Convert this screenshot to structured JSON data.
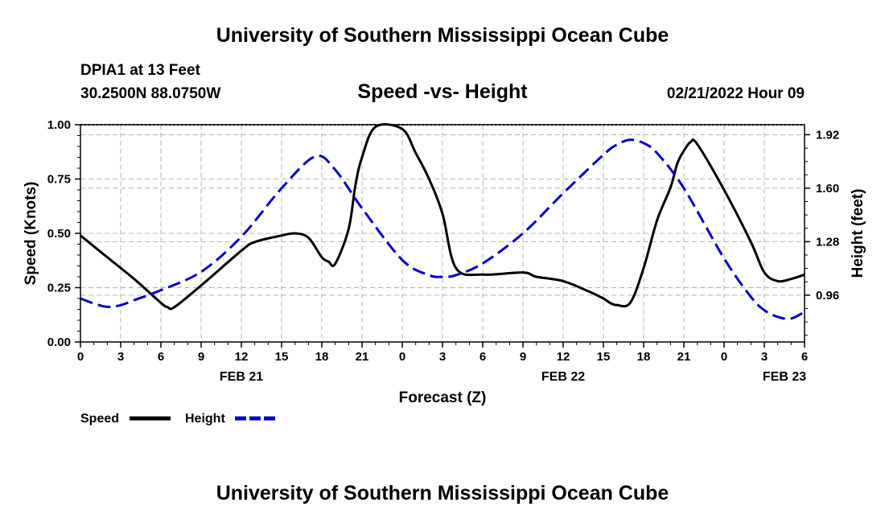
{
  "header": {
    "title": "University of Southern Mississippi Ocean Cube",
    "station": "DPIA1 at 13 Feet",
    "coords": "30.2500N  88.0750W",
    "subtitle": "Speed -vs- Height",
    "datetime": "02/21/2022 Hour 09"
  },
  "footer": {
    "title": "University of Southern Mississippi Ocean Cube"
  },
  "chart_data": {
    "type": "line",
    "title": "Speed -vs- Height",
    "xlabel": "Forecast (Z)",
    "ylabel": "Speed (Knots)",
    "y2label": "Height (feet)",
    "xlim": [
      0,
      54
    ],
    "ylim": [
      0,
      1.0
    ],
    "y2lim": [
      0.68,
      1.98
    ],
    "grid": true,
    "x_ticks": [
      {
        "hour": 0,
        "label": "0"
      },
      {
        "hour": 3,
        "label": "3"
      },
      {
        "hour": 6,
        "label": "6"
      },
      {
        "hour": 9,
        "label": "9"
      },
      {
        "hour": 12,
        "label": "12"
      },
      {
        "hour": 15,
        "label": "15"
      },
      {
        "hour": 18,
        "label": "18"
      },
      {
        "hour": 21,
        "label": "21"
      },
      {
        "hour": 24,
        "label": "0"
      },
      {
        "hour": 27,
        "label": "3"
      },
      {
        "hour": 30,
        "label": "6"
      },
      {
        "hour": 33,
        "label": "9"
      },
      {
        "hour": 36,
        "label": "12"
      },
      {
        "hour": 39,
        "label": "15"
      },
      {
        "hour": 42,
        "label": "18"
      },
      {
        "hour": 45,
        "label": "21"
      },
      {
        "hour": 48,
        "label": "0"
      },
      {
        "hour": 51,
        "label": "3"
      },
      {
        "hour": 54,
        "label": "6"
      }
    ],
    "date_labels": [
      {
        "hour": 12,
        "label": "FEB 21"
      },
      {
        "hour": 36,
        "label": "FEB 22"
      },
      {
        "hour": 52.5,
        "label": "FEB 23"
      }
    ],
    "y_ticks": [
      "0.00",
      "0.25",
      "0.50",
      "0.75",
      "1.00"
    ],
    "y2_ticks": [
      "0.96",
      "1.28",
      "1.60",
      "1.92"
    ],
    "legend": [
      {
        "name": "Speed",
        "color": "#000000",
        "style": "solid"
      },
      {
        "name": "Height",
        "color": "#0000cc",
        "style": "dashed"
      }
    ],
    "legend_position": "bottom-left",
    "series": [
      {
        "name": "Speed",
        "axis": "left",
        "color": "#000000",
        "x": [
          0,
          2,
          4,
          6,
          6.5,
          7,
          9,
          12,
          13,
          15,
          16,
          17,
          18,
          18.5,
          19,
          20,
          20.5,
          21,
          22,
          24,
          25,
          26,
          27,
          28,
          30,
          33,
          34,
          36,
          38,
          39,
          39.5,
          40,
          41,
          42,
          43,
          44,
          44.5,
          45,
          45.5,
          46,
          48,
          50,
          51,
          52,
          53,
          54
        ],
        "y": [
          0.49,
          0.39,
          0.29,
          0.18,
          0.16,
          0.16,
          0.26,
          0.42,
          0.46,
          0.49,
          0.5,
          0.48,
          0.39,
          0.37,
          0.36,
          0.52,
          0.72,
          0.85,
          0.99,
          0.98,
          0.87,
          0.75,
          0.59,
          0.34,
          0.31,
          0.32,
          0.3,
          0.28,
          0.23,
          0.2,
          0.18,
          0.17,
          0.18,
          0.34,
          0.56,
          0.71,
          0.82,
          0.88,
          0.92,
          0.91,
          0.7,
          0.46,
          0.32,
          0.28,
          0.29,
          0.31
        ]
      },
      {
        "name": "Height",
        "axis": "right",
        "color": "#0000cc",
        "x": [
          0,
          1,
          2,
          3,
          4,
          6,
          9,
          12,
          15,
          17.5,
          19,
          21,
          24,
          26,
          27,
          28,
          30,
          33,
          36,
          39,
          40,
          41,
          42,
          43,
          45,
          48,
          50,
          51,
          52,
          53,
          54
        ],
        "y": [
          0.94,
          0.91,
          0.89,
          0.9,
          0.93,
          0.99,
          1.1,
          1.31,
          1.6,
          1.79,
          1.71,
          1.48,
          1.17,
          1.08,
          1.07,
          1.08,
          1.15,
          1.33,
          1.57,
          1.8,
          1.86,
          1.89,
          1.87,
          1.81,
          1.6,
          1.18,
          0.95,
          0.87,
          0.83,
          0.82,
          0.86
        ]
      }
    ]
  }
}
